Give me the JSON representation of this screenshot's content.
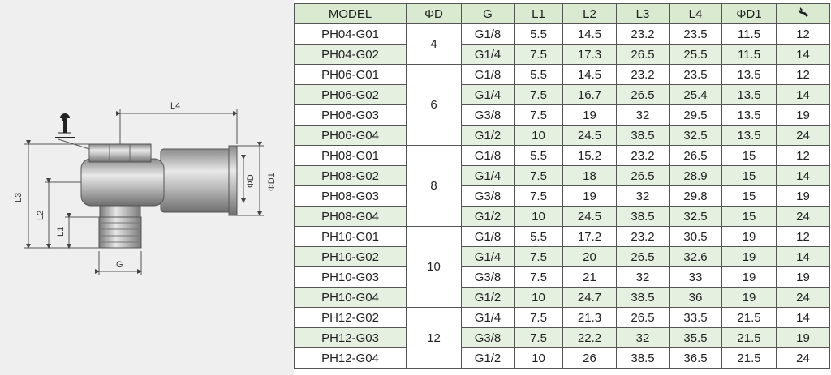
{
  "drawing": {
    "dimension_labels": {
      "L4": "L4",
      "L3": "L3",
      "L2": "L2",
      "L1": "L1",
      "G": "G",
      "PhiD": "ΦD",
      "PhiD1": "ΦD1"
    },
    "wrench_icon": "wrench-icon"
  },
  "table": {
    "headers": [
      "MODEL",
      "ΦD",
      "G",
      "L1",
      "L2",
      "L3",
      "L4",
      "ΦD1"
    ],
    "last_header_icon": "wrench-icon",
    "header_color": "#d9ead0",
    "shade_color": "#e6f0e0",
    "rows": [
      {
        "model": "PH04-G01",
        "phid": "4",
        "g": "G1/8",
        "l1": "5.5",
        "l2": "14.5",
        "l3": "23.2",
        "l4": "23.5",
        "phid1": "11.5",
        "wrench": "12"
      },
      {
        "model": "PH04-G02",
        "g": "G1/4",
        "l1": "7.5",
        "l2": "17.3",
        "l3": "26.5",
        "l4": "25.5",
        "phid1": "11.5",
        "wrench": "14"
      },
      {
        "model": "PH06-G01",
        "phid": "6",
        "g": "G1/8",
        "l1": "5.5",
        "l2": "14.5",
        "l3": "23.2",
        "l4": "23.5",
        "phid1": "13.5",
        "wrench": "12"
      },
      {
        "model": "PH06-G02",
        "g": "G1/4",
        "l1": "7.5",
        "l2": "16.7",
        "l3": "26.5",
        "l4": "25.4",
        "phid1": "13.5",
        "wrench": "14"
      },
      {
        "model": "PH06-G03",
        "g": "G3/8",
        "l1": "7.5",
        "l2": "19",
        "l3": "32",
        "l4": "29.5",
        "phid1": "13.5",
        "wrench": "19"
      },
      {
        "model": "PH06-G04",
        "g": "G1/2",
        "l1": "10",
        "l2": "24.5",
        "l3": "38.5",
        "l4": "32.5",
        "phid1": "13.5",
        "wrench": "24"
      },
      {
        "model": "PH08-G01",
        "phid": "8",
        "g": "G1/8",
        "l1": "5.5",
        "l2": "15.2",
        "l3": "23.2",
        "l4": "26.5",
        "phid1": "15",
        "wrench": "12"
      },
      {
        "model": "PH08-G02",
        "g": "G1/4",
        "l1": "7.5",
        "l2": "18",
        "l3": "26.5",
        "l4": "28.9",
        "phid1": "15",
        "wrench": "14"
      },
      {
        "model": "PH08-G03",
        "g": "G3/8",
        "l1": "7.5",
        "l2": "19",
        "l3": "32",
        "l4": "29.8",
        "phid1": "15",
        "wrench": "19"
      },
      {
        "model": "PH08-G04",
        "g": "G1/2",
        "l1": "10",
        "l2": "24.5",
        "l3": "38.5",
        "l4": "32.5",
        "phid1": "15",
        "wrench": "24"
      },
      {
        "model": "PH10-G01",
        "phid": "10",
        "g": "G1/8",
        "l1": "5.5",
        "l2": "17.2",
        "l3": "23.2",
        "l4": "30.5",
        "phid1": "19",
        "wrench": "12"
      },
      {
        "model": "PH10-G02",
        "g": "G1/4",
        "l1": "7.5",
        "l2": "20",
        "l3": "26.5",
        "l4": "32.6",
        "phid1": "19",
        "wrench": "14"
      },
      {
        "model": "PH10-G03",
        "g": "G3/8",
        "l1": "7.5",
        "l2": "21",
        "l3": "32",
        "l4": "33",
        "phid1": "19",
        "wrench": "19"
      },
      {
        "model": "PH10-G04",
        "g": "G1/2",
        "l1": "10",
        "l2": "24.7",
        "l3": "38.5",
        "l4": "36",
        "phid1": "19",
        "wrench": "24"
      },
      {
        "model": "PH12-G02",
        "phid": "12",
        "g": "G1/4",
        "l1": "7.5",
        "l2": "21.3",
        "l3": "26.5",
        "l4": "33.5",
        "phid1": "21.5",
        "wrench": "14"
      },
      {
        "model": "PH12-G03",
        "g": "G3/8",
        "l1": "7.5",
        "l2": "22.2",
        "l3": "32",
        "l4": "35.5",
        "phid1": "21.5",
        "wrench": "19"
      },
      {
        "model": "PH12-G04",
        "g": "G1/2",
        "l1": "10",
        "l2": "26",
        "l3": "38.5",
        "l4": "36.5",
        "phid1": "21.5",
        "wrench": "24"
      }
    ],
    "phid_groups": [
      {
        "start": 0,
        "span": 2
      },
      {
        "start": 2,
        "span": 4
      },
      {
        "start": 6,
        "span": 4
      },
      {
        "start": 10,
        "span": 4
      },
      {
        "start": 14,
        "span": 3
      }
    ]
  }
}
